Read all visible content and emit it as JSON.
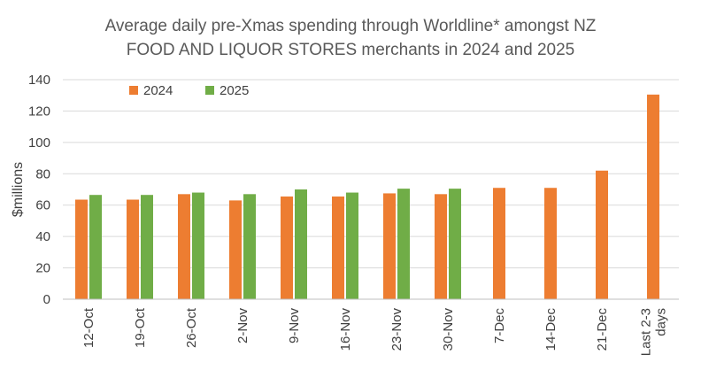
{
  "chart_data": {
    "type": "bar",
    "title_line1": "Average daily pre-Xmas spending through Worldline* amongst NZ",
    "title_line2": "FOOD AND LIQUOR STORES merchants in 2024 and 2025",
    "ylabel": "$millions",
    "xlabel": "",
    "ylim": [
      0,
      140
    ],
    "yticks": [
      0,
      20,
      40,
      60,
      80,
      100,
      120,
      140
    ],
    "grid": true,
    "legend_position": "top-left",
    "categories": [
      "12-Oct",
      "19-Oct",
      "26-Oct",
      "2-Nov",
      "9-Nov",
      "16-Nov",
      "23-Nov",
      "30-Nov",
      "7-Dec",
      "14-Dec",
      "21-Dec",
      "Last 2-3 days"
    ],
    "series": [
      {
        "name": "2024",
        "color": "#ED7D31",
        "values": [
          63.5,
          63.5,
          67,
          63,
          65.5,
          65.5,
          67.5,
          67,
          71,
          71,
          82,
          130.5
        ]
      },
      {
        "name": "2025",
        "color": "#70AD47",
        "values": [
          66.5,
          66.5,
          68,
          67,
          70,
          68,
          70.5,
          70.5,
          null,
          null,
          null,
          null
        ]
      }
    ]
  }
}
